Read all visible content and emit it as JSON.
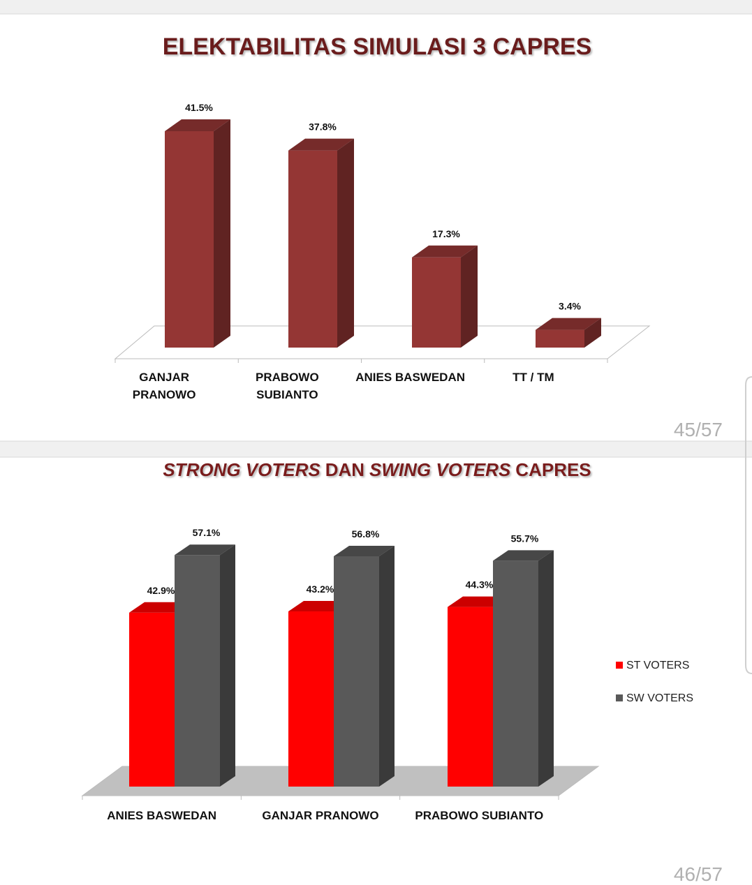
{
  "chart_data": [
    {
      "type": "bar",
      "title": "ELEKTABILITAS SIMULASI 3 CAPRES",
      "categories": [
        [
          "GANJAR",
          "PRANOWO"
        ],
        [
          "PRABOWO",
          "SUBIANTO"
        ],
        [
          "ANIES BASWEDAN"
        ],
        [
          "TT / TM"
        ]
      ],
      "values": [
        41.5,
        37.8,
        17.3,
        3.4
      ],
      "value_labels": [
        "41.5%",
        "37.8%",
        "17.3%",
        "3.4%"
      ],
      "color": "#943634",
      "page_number": "45/57"
    },
    {
      "type": "bar",
      "title_segments": [
        {
          "text": "STRONG VOTERS",
          "italic": true
        },
        {
          "text": "DAN",
          "italic": false
        },
        {
          "text": "SWING VOTERS",
          "italic": true
        },
        {
          "text": "CAPRES",
          "italic": false
        }
      ],
      "categories": [
        [
          "ANIES BASWEDAN"
        ],
        [
          "GANJAR PRANOWO"
        ],
        [
          "PRABOWO SUBIANTO"
        ]
      ],
      "series": [
        {
          "name": "ST VOTERS",
          "color": "#ff0000",
          "values": [
            42.9,
            43.2,
            44.3
          ],
          "value_labels": [
            "42.9%",
            "43.2%",
            "44.3%"
          ]
        },
        {
          "name": "SW VOTERS",
          "color": "#595959",
          "values": [
            57.1,
            56.8,
            55.7
          ],
          "value_labels": [
            "57.1%",
            "56.8%",
            "55.7%"
          ]
        }
      ],
      "legend": "right",
      "page_number": "46/57"
    }
  ]
}
